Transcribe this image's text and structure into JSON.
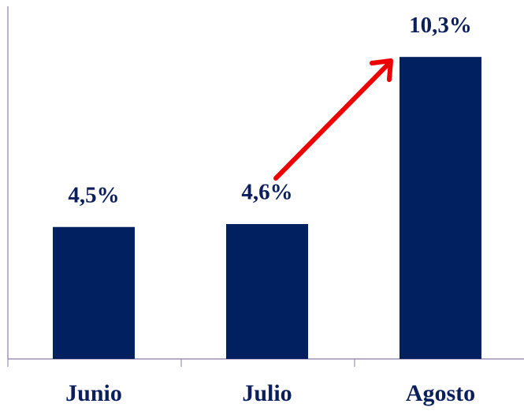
{
  "chart_data": {
    "type": "bar",
    "categories": [
      "Junio",
      "Julio",
      "Agosto"
    ],
    "values": [
      4.5,
      4.6,
      10.3
    ],
    "value_labels": [
      "4,5%",
      "4,6%",
      "10,3%"
    ],
    "color": "#002060",
    "ylim": [
      0,
      12
    ]
  }
}
